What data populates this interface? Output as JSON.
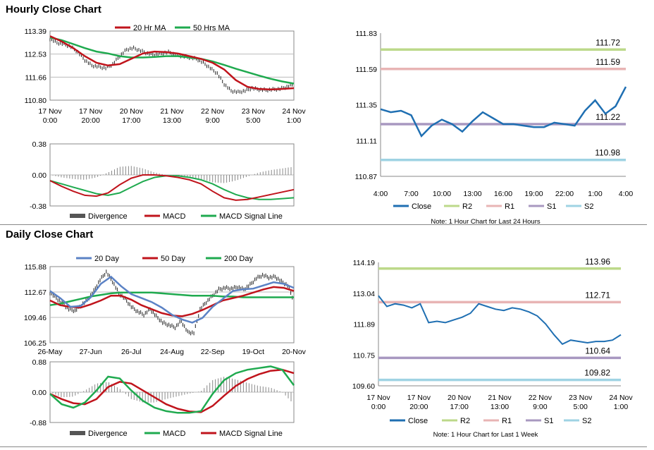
{
  "sections": {
    "hourly_title": "Hourly Close Chart",
    "daily_title": "Daily Close Chart"
  },
  "legend": {
    "ma20": "20 Hr MA",
    "ma50": "50 Hrs MA",
    "divergence": "Divergence",
    "macd": "MACD",
    "signal": "MACD Signal Line",
    "day20": "20 Day",
    "day50": "50 Day",
    "day200": "200 Day",
    "close": "Close",
    "r2": "R2",
    "r1": "R1",
    "s1": "S1",
    "s2": "S2"
  },
  "colors": {
    "red": "#c0141c",
    "green": "#1faa4f",
    "blue": "#5b82c5",
    "close": "#1f6fb2",
    "r2": "#bcd98a",
    "r1": "#e8b4b4",
    "s1": "#a898c0",
    "s2": "#9fd3e3",
    "bars": "#222222",
    "divergence": "#888888"
  },
  "notes": {
    "hourly": "Note: 1 Hour Chart for Last 24 Hours",
    "daily": "Note: 1 Hour Chart for Last 1 Week"
  },
  "chart_data": [
    {
      "id": "hourly_price",
      "type": "line",
      "yticks": [
        "113.39",
        "112.53",
        "111.66",
        "110.80"
      ],
      "ylim": [
        110.8,
        113.39
      ],
      "xticks": [
        [
          "17 Nov",
          "0:00"
        ],
        [
          "17 Nov",
          "20:00"
        ],
        [
          "20 Nov",
          "17:00"
        ],
        [
          "21 Nov",
          "13:00"
        ],
        [
          "22 Nov",
          "9:00"
        ],
        [
          "23 Nov",
          "5:00"
        ],
        [
          "24 Nov",
          "1:00"
        ]
      ],
      "series": [
        {
          "name": "20 Hr MA",
          "values": [
            113.2,
            113.0,
            112.75,
            112.45,
            112.2,
            112.1,
            112.15,
            112.35,
            112.55,
            112.62,
            112.6,
            112.55,
            112.45,
            112.35,
            112.2,
            111.95,
            111.55,
            111.3,
            111.22,
            111.2,
            111.22,
            111.25
          ]
        },
        {
          "name": "50 Hrs MA",
          "values": [
            113.15,
            113.05,
            112.9,
            112.75,
            112.62,
            112.55,
            112.45,
            112.4,
            112.4,
            112.42,
            112.45,
            112.45,
            112.4,
            112.35,
            112.25,
            112.12,
            111.98,
            111.85,
            111.72,
            111.6,
            111.5,
            111.42
          ]
        }
      ],
      "close": [
        113.1,
        112.95,
        112.9,
        112.8,
        112.6,
        112.3,
        112.1,
        112.05,
        112.0,
        112.15,
        112.45,
        112.7,
        112.75,
        112.65,
        112.55,
        112.5,
        112.55,
        112.6,
        112.5,
        112.45,
        112.4,
        112.35,
        112.2,
        112.0,
        111.8,
        111.4,
        111.15,
        111.1,
        111.15,
        111.25,
        111.2,
        111.18,
        111.2,
        111.22,
        111.3,
        111.4
      ]
    },
    {
      "id": "hourly_macd",
      "type": "line",
      "yticks": [
        "0.38",
        "0.00",
        "-0.38"
      ],
      "ylim": [
        -0.38,
        0.38
      ],
      "series": [
        {
          "name": "MACD",
          "values": [
            -0.07,
            -0.14,
            -0.2,
            -0.25,
            -0.26,
            -0.22,
            -0.12,
            -0.04,
            0.0,
            0.0,
            -0.01,
            -0.03,
            -0.06,
            -0.11,
            -0.2,
            -0.28,
            -0.31,
            -0.3,
            -0.27,
            -0.24,
            -0.21,
            -0.18
          ]
        },
        {
          "name": "MACD Signal Line",
          "values": [
            -0.07,
            -0.11,
            -0.15,
            -0.19,
            -0.23,
            -0.25,
            -0.22,
            -0.15,
            -0.08,
            -0.03,
            -0.01,
            -0.01,
            -0.03,
            -0.06,
            -0.11,
            -0.18,
            -0.24,
            -0.28,
            -0.3,
            -0.3,
            -0.29,
            -0.28
          ]
        }
      ],
      "divergence": [
        0.0,
        -0.03,
        -0.05,
        -0.06,
        -0.03,
        0.03,
        0.1,
        0.11,
        0.08,
        0.03,
        0.0,
        -0.02,
        -0.03,
        -0.05,
        -0.09,
        -0.1,
        -0.07,
        -0.02,
        0.03,
        0.06,
        0.08,
        0.1
      ]
    },
    {
      "id": "hourly_levels",
      "type": "line",
      "yticks": [
        "111.83",
        "111.59",
        "111.35",
        "111.11",
        "110.87"
      ],
      "ylim": [
        110.87,
        111.83
      ],
      "xticks": [
        "4:00",
        "7:00",
        "10:00",
        "13:00",
        "16:00",
        "19:00",
        "22:00",
        "1:00",
        "4:00"
      ],
      "close": [
        111.32,
        111.3,
        111.31,
        111.28,
        111.14,
        111.21,
        111.25,
        111.22,
        111.17,
        111.24,
        111.3,
        111.26,
        111.22,
        111.22,
        111.21,
        111.2,
        111.2,
        111.23,
        111.22,
        111.21,
        111.31,
        111.38,
        111.29,
        111.34,
        111.47
      ],
      "levels": [
        {
          "name": "R2",
          "value": 111.72,
          "label": "111.72"
        },
        {
          "name": "R1",
          "value": 111.59,
          "label": "111.59"
        },
        {
          "name": "S1",
          "value": 111.22,
          "label": "111.22"
        },
        {
          "name": "S2",
          "value": 110.98,
          "label": "110.98"
        }
      ]
    },
    {
      "id": "daily_price",
      "type": "line",
      "yticks": [
        "115.88",
        "112.67",
        "109.46",
        "106.25"
      ],
      "ylim": [
        106.25,
        115.88
      ],
      "xticks": [
        "26-May",
        "27-Jun",
        "26-Jul",
        "24-Aug",
        "22-Sep",
        "19-Oct",
        "20-Nov"
      ],
      "series": [
        {
          "name": "20 Day",
          "values": [
            112.8,
            111.9,
            110.8,
            110.9,
            112.0,
            113.7,
            114.6,
            113.4,
            112.4,
            111.9,
            111.4,
            110.7,
            109.8,
            109.2,
            108.8,
            109.4,
            110.8,
            111.8,
            112.8,
            113.0,
            113.1,
            113.5,
            113.9,
            113.7,
            113.2
          ]
        },
        {
          "name": "50 Day",
          "values": [
            111.6,
            111.0,
            110.8,
            110.7,
            111.1,
            111.6,
            112.2,
            112.2,
            111.7,
            111.0,
            110.5,
            110.0,
            109.7,
            109.6,
            109.9,
            110.4,
            111.0,
            111.6,
            111.9,
            112.2,
            112.6,
            113.0,
            113.3,
            113.2,
            112.8
          ]
        },
        {
          "name": "200 Day",
          "values": [
            111.0,
            111.2,
            111.5,
            111.8,
            112.1,
            112.3,
            112.5,
            112.6,
            112.6,
            112.6,
            112.6,
            112.5,
            112.4,
            112.3,
            112.2,
            112.2,
            112.2,
            112.1,
            112.1,
            112.0,
            112.0,
            112.0,
            112.0,
            112.0,
            112.0
          ]
        }
      ],
      "close": [
        112.6,
        111.9,
        111.2,
        110.5,
        110.3,
        111.0,
        111.7,
        112.8,
        114.2,
        115.2,
        114.0,
        112.5,
        111.8,
        110.8,
        110.2,
        109.8,
        110.5,
        109.6,
        108.8,
        108.5,
        108.2,
        109.0,
        107.6,
        107.5,
        110.5,
        111.4,
        112.2,
        113.0,
        113.2,
        113.1,
        113.3,
        113.0,
        113.6,
        114.4,
        114.8,
        114.5,
        114.6,
        114.0,
        113.5,
        111.6
      ]
    },
    {
      "id": "daily_macd",
      "type": "line",
      "yticks": [
        "0.88",
        "0.00",
        "-0.88"
      ],
      "ylim": [
        -0.88,
        0.88
      ],
      "series": [
        {
          "name": "MACD",
          "values": [
            -0.05,
            -0.35,
            -0.45,
            -0.3,
            0.05,
            0.45,
            0.4,
            0.05,
            -0.25,
            -0.45,
            -0.55,
            -0.6,
            -0.6,
            -0.55,
            -0.05,
            0.35,
            0.55,
            0.65,
            0.7,
            0.75,
            0.65,
            0.2
          ]
        },
        {
          "name": "MACD Signal Line",
          "values": [
            -0.05,
            -0.2,
            -0.32,
            -0.35,
            -0.2,
            0.15,
            0.3,
            0.25,
            0.05,
            -0.15,
            -0.35,
            -0.48,
            -0.56,
            -0.58,
            -0.4,
            -0.1,
            0.18,
            0.38,
            0.52,
            0.62,
            0.65,
            0.55
          ]
        }
      ],
      "divergence": [
        0.0,
        -0.15,
        -0.13,
        0.05,
        0.25,
        0.3,
        0.1,
        -0.2,
        -0.3,
        -0.3,
        -0.2,
        -0.12,
        -0.04,
        0.03,
        0.35,
        0.45,
        0.37,
        0.27,
        0.18,
        0.13,
        0.0,
        -0.35
      ]
    },
    {
      "id": "daily_levels",
      "type": "line",
      "yticks": [
        "114.19",
        "113.04",
        "111.89",
        "110.75",
        "109.60"
      ],
      "ylim": [
        109.6,
        114.19
      ],
      "xticks": [
        [
          "17 Nov",
          "0:00"
        ],
        [
          "17 Nov",
          "20:00"
        ],
        [
          "20 Nov",
          "17:00"
        ],
        [
          "21 Nov",
          "13:00"
        ],
        [
          "22 Nov",
          "9:00"
        ],
        [
          "23 Nov",
          "5:00"
        ],
        [
          "24 Nov",
          "1:00"
        ]
      ],
      "close": [
        112.95,
        112.55,
        112.65,
        112.6,
        112.5,
        112.65,
        111.95,
        112.0,
        111.95,
        112.05,
        112.15,
        112.3,
        112.65,
        112.55,
        112.45,
        112.4,
        112.5,
        112.45,
        112.35,
        112.2,
        111.9,
        111.5,
        111.15,
        111.3,
        111.25,
        111.2,
        111.25,
        111.25,
        111.3,
        111.5
      ],
      "levels": [
        {
          "name": "R2",
          "value": 113.96,
          "label": "113.96"
        },
        {
          "name": "R1",
          "value": 112.71,
          "label": "112.71"
        },
        {
          "name": "S1",
          "value": 110.64,
          "label": "110.64"
        },
        {
          "name": "S2",
          "value": 109.82,
          "label": "109.82"
        }
      ]
    }
  ]
}
